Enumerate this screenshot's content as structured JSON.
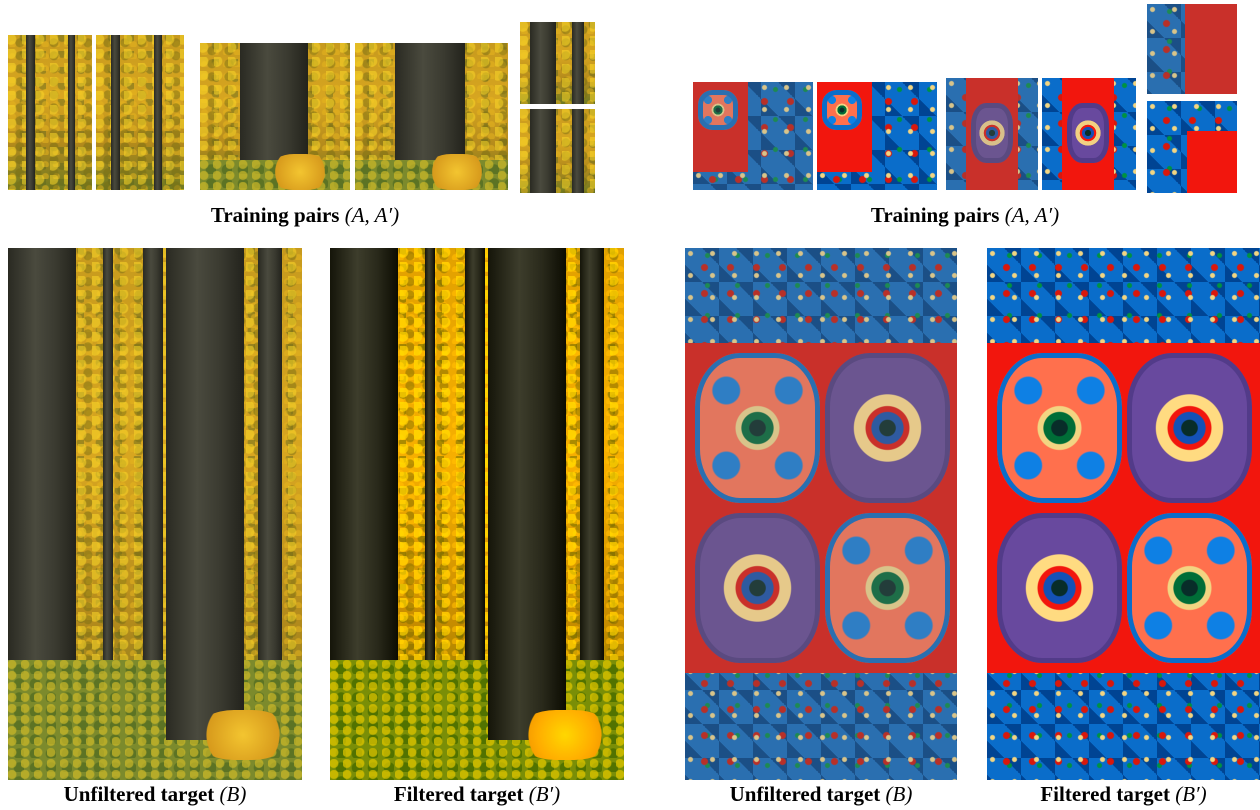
{
  "captions": {
    "training_left": {
      "bold": "Training pairs",
      "math": "(A, A′)"
    },
    "training_right": {
      "bold": "Training pairs",
      "math": "(A, A′)"
    },
    "unfiltered_left": {
      "bold": "Unfiltered target",
      "math": "(B)"
    },
    "filtered_left": {
      "bold": "Filtered target",
      "math": "(B′)"
    },
    "unfiltered_right": {
      "bold": "Unfiltered target",
      "math": "(B)"
    },
    "filtered_right": {
      "bold": "Filtered target",
      "math": "(B′)"
    }
  },
  "colors": {
    "forest_yellow": "#d8a620",
    "trunk": "#3a3a30",
    "rug_red": "#c9302a",
    "rug_blue": "#2a6fb0"
  }
}
